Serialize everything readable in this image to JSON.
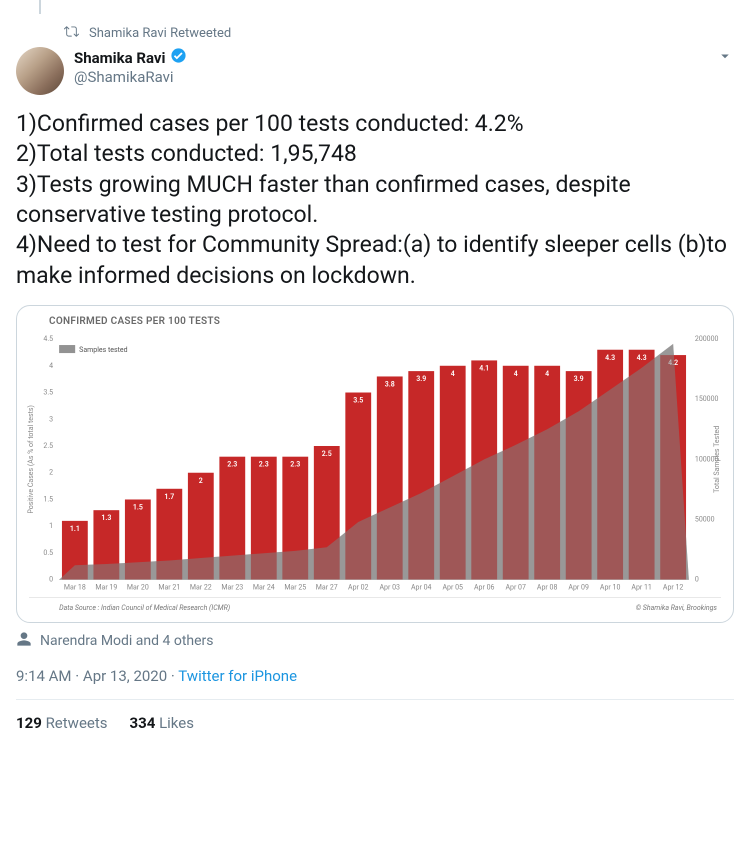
{
  "retweet": {
    "label": "Shamika Ravi Retweeted"
  },
  "author": {
    "name": "Shamika Ravi",
    "handle": "@ShamikaRavi",
    "verified": true
  },
  "body": "1)Confirmed cases per 100 tests conducted: 4.2%\n2)Total tests conducted: 1,95,748\n3)Tests growing MUCH faster than confirmed cases, despite conservative testing protocol.\n4)Need to test for Community Spread:(a) to identify sleeper cells (b)to make informed decisions on lockdown.",
  "chart": {
    "type": "bar+area",
    "title": "CONFIRMED CASES PER 100 TESTS",
    "legend_label": "Samples tested",
    "ylabel_left": "Positive Cases (As % of total tests)",
    "ylabel_right": "Total Samples Tested",
    "categories": [
      "Mar 18",
      "Mar 19",
      "Mar 20",
      "Mar 21",
      "Mar 22",
      "Mar 23",
      "Mar 24",
      "Mar 25",
      "Mar 27",
      "Apr 02",
      "Apr 03",
      "Apr 04",
      "Apr 05",
      "Apr 06",
      "Apr 07",
      "Apr 08",
      "Apr 09",
      "Apr 10",
      "Apr 11",
      "Apr 12"
    ],
    "bar_values": [
      1.1,
      1.3,
      1.5,
      1.7,
      2,
      2.3,
      2.3,
      2.3,
      2.5,
      3.5,
      3.8,
      3.9,
      4,
      4.1,
      4,
      4,
      3.9,
      4.3,
      4.3,
      4.2
    ],
    "area_values": [
      12000,
      13000,
      14500,
      16000,
      18000,
      20000,
      22000,
      24000,
      27000,
      48000,
      60000,
      72000,
      86000,
      100000,
      112000,
      125000,
      140000,
      158000,
      176000,
      196000
    ],
    "left_ylim": [
      0,
      4.5
    ],
    "left_ytick_step": 0.5,
    "right_ylim": [
      0,
      200000
    ],
    "right_yticks": [
      0,
      50000,
      100000,
      150000,
      200000
    ],
    "bar_color": "#c62828",
    "area_color": "#7f7e7e",
    "area_opacity": 0.55,
    "background_color": "#ffffff",
    "bar_width": 0.82,
    "data_source": "Data Source : Indian Council of Medical Research (ICMR)",
    "credit": "© Shamika Ravi, Brookings"
  },
  "tagged": {
    "label": "Narendra Modi and 4 others"
  },
  "meta": {
    "time": "9:14 AM",
    "date": "Apr 13, 2020",
    "source": "Twitter for iPhone"
  },
  "stats": {
    "retweets_count": "129",
    "retweets_label": "Retweets",
    "likes_count": "334",
    "likes_label": "Likes"
  }
}
